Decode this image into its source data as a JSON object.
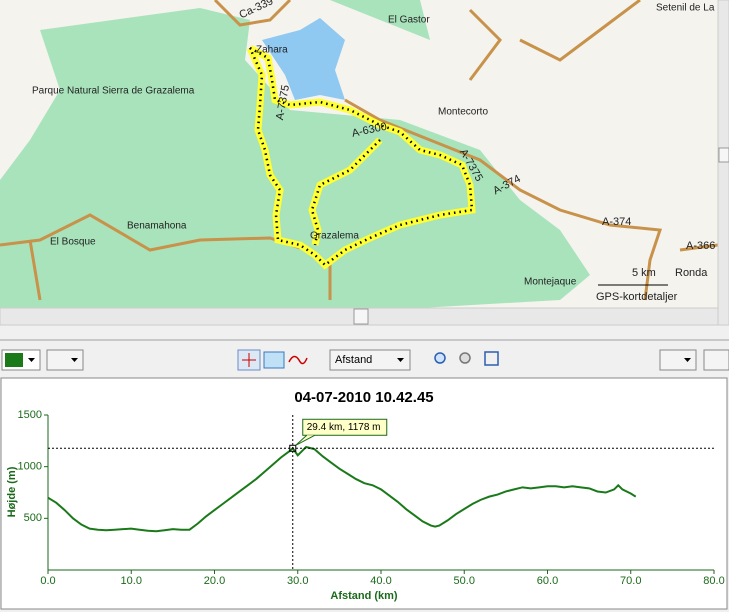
{
  "map": {
    "labels": [
      "Ca-339",
      "El Gastor",
      "Setenil de La",
      "Zahara",
      "Parque Natural Sierra de Grazalema",
      "A-7375",
      "Montecorto",
      "A-6300",
      "A-7375",
      "A-374",
      "A-374",
      "Benamahona",
      "El Bosque",
      "Grazalema",
      "A-366",
      "Montejaque",
      "5 km",
      "Ronda"
    ],
    "details": "GPS-kortdetaljer"
  },
  "toolbar": {
    "dropdown": "Afstand"
  },
  "chart_data": {
    "type": "line",
    "title": "04-07-2010 10.42.45",
    "xlabel": "Afstand (km)",
    "ylabel": "Højde (m)",
    "x": [
      0,
      1,
      2,
      3,
      4,
      5,
      6,
      7,
      8,
      9,
      10,
      11,
      12,
      13,
      14,
      15,
      16,
      17,
      18,
      19,
      20,
      21,
      22,
      23,
      24,
      25,
      26,
      27,
      28,
      29,
      29.4,
      30,
      30.5,
      31,
      32,
      33,
      34,
      35,
      36,
      37,
      38,
      39,
      40,
      41,
      42,
      43,
      44,
      45,
      46,
      46.5,
      47,
      48,
      49,
      50,
      51,
      52,
      53,
      54,
      55,
      56,
      57,
      58,
      59,
      60,
      61,
      62,
      63,
      64,
      65,
      66,
      67,
      68,
      68.5,
      69,
      70,
      70.6
    ],
    "series": [
      {
        "name": "Højde",
        "color": "#1a7a1a",
        "values": [
          700,
          650,
          580,
          500,
          440,
          400,
          390,
          385,
          390,
          395,
          400,
          390,
          380,
          375,
          385,
          395,
          390,
          390,
          450,
          520,
          580,
          640,
          700,
          760,
          820,
          880,
          950,
          1020,
          1090,
          1150,
          1178,
          1110,
          1150,
          1190,
          1170,
          1100,
          1040,
          980,
          930,
          880,
          840,
          820,
          780,
          720,
          660,
          590,
          530,
          470,
          430,
          420,
          430,
          480,
          540,
          590,
          640,
          680,
          710,
          730,
          760,
          780,
          800,
          790,
          800,
          810,
          810,
          800,
          810,
          800,
          790,
          760,
          750,
          780,
          820,
          780,
          740,
          710
        ]
      }
    ],
    "xlim": [
      0,
      80
    ],
    "ylim": [
      0,
      1500
    ],
    "xticks": [
      {
        "value": 0,
        "label": "0.0"
      },
      {
        "value": 10,
        "label": "10.0"
      },
      {
        "value": 20,
        "label": "20.0"
      },
      {
        "value": 30,
        "label": "30.0"
      },
      {
        "value": 40,
        "label": "40.0"
      },
      {
        "value": 50,
        "label": "50.0"
      },
      {
        "value": 60,
        "label": "60.0"
      },
      {
        "value": 70,
        "label": "70.0"
      },
      {
        "value": 80,
        "label": "80.0"
      }
    ],
    "yticks": [
      500,
      1000,
      1500
    ],
    "grid": false,
    "cursor": {
      "x": 29.4,
      "y": 1178,
      "label": "29.4 km, 1178 m"
    }
  }
}
